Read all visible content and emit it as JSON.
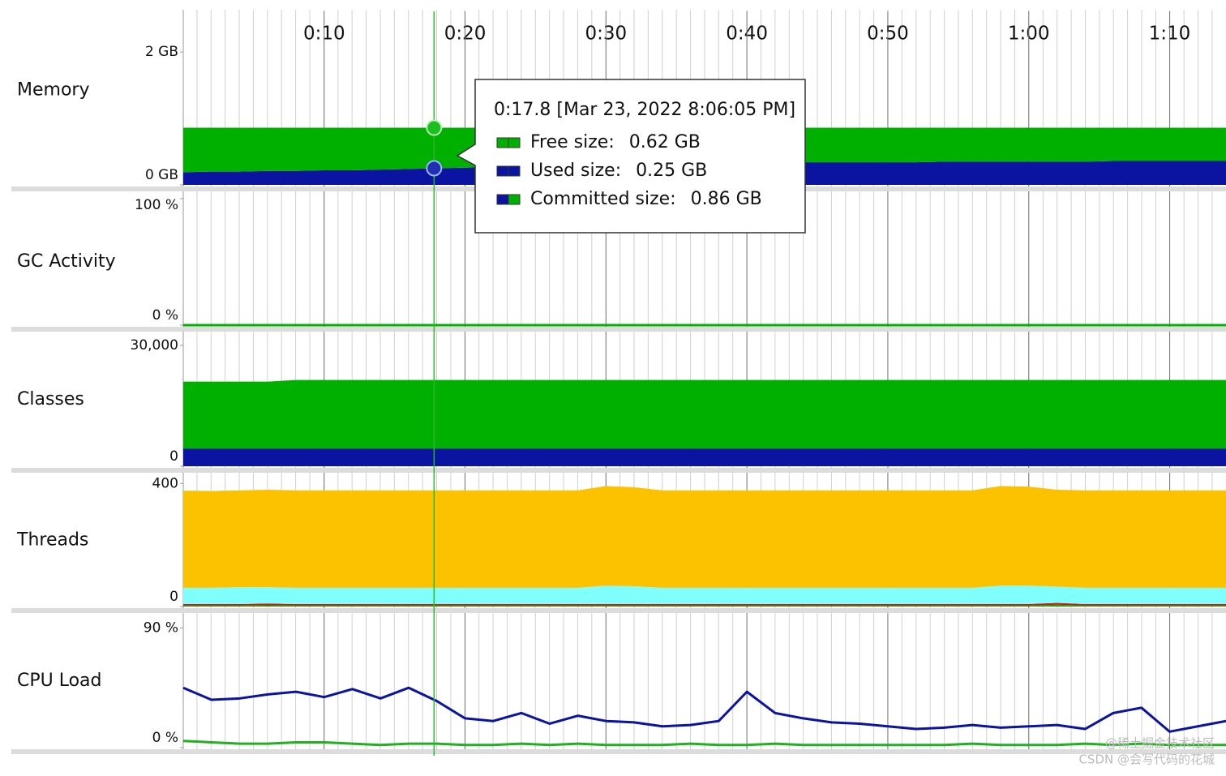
{
  "time_axis": {
    "xlim": [
      0,
      74
    ],
    "xticks": [
      {
        "value": 10,
        "label": "0:10"
      },
      {
        "value": 20,
        "label": "0:20"
      },
      {
        "value": 30,
        "label": "0:30"
      },
      {
        "value": 40,
        "label": "0:40"
      },
      {
        "value": 50,
        "label": "0:50"
      },
      {
        "value": 60,
        "label": "1:00"
      },
      {
        "value": 70,
        "label": "1:10"
      }
    ]
  },
  "t": [
    0,
    2,
    4,
    6,
    8,
    10,
    12,
    14,
    16,
    18,
    20,
    22,
    24,
    26,
    28,
    30,
    32,
    34,
    36,
    38,
    40,
    42,
    44,
    46,
    48,
    50,
    52,
    54,
    56,
    58,
    60,
    62,
    64,
    66,
    68,
    70,
    72,
    74
  ],
  "cursor": 17.8,
  "panels": [
    {
      "label": "Memory",
      "type": "stacked_area",
      "ylim": [
        0,
        2.6
      ],
      "yticks": [
        {
          "value": 0,
          "label": "0 GB"
        },
        {
          "value": 2,
          "label": "2 GB"
        }
      ],
      "series": [
        {
          "color": "#0a14a0",
          "values": [
            0.19,
            0.2,
            0.2,
            0.21,
            0.21,
            0.22,
            0.22,
            0.23,
            0.24,
            0.25,
            0.26,
            0.27,
            0.28,
            0.29,
            0.3,
            0.31,
            0.32,
            0.33,
            0.33,
            0.34,
            0.34,
            0.34,
            0.34,
            0.34,
            0.34,
            0.34,
            0.34,
            0.35,
            0.35,
            0.35,
            0.35,
            0.35,
            0.35,
            0.36,
            0.36,
            0.36,
            0.36,
            0.36
          ]
        },
        {
          "color": "#00b000",
          "values": [
            0.67,
            0.66,
            0.66,
            0.65,
            0.65,
            0.64,
            0.64,
            0.63,
            0.62,
            0.61,
            0.6,
            0.59,
            0.58,
            0.57,
            0.56,
            0.55,
            0.54,
            0.53,
            0.53,
            0.52,
            0.52,
            0.52,
            0.52,
            0.52,
            0.52,
            0.52,
            0.52,
            0.51,
            0.51,
            0.51,
            0.51,
            0.51,
            0.51,
            0.5,
            0.5,
            0.5,
            0.5,
            0.5
          ]
        }
      ]
    },
    {
      "label": "GC Activity",
      "type": "line",
      "ylim": [
        0,
        100
      ],
      "yticks": [
        {
          "value": 0,
          "label": "0 %"
        },
        {
          "value": 100,
          "label": "100 %"
        }
      ],
      "series": [
        {
          "color": "#00b000",
          "values": [
            0,
            0,
            0,
            0,
            0,
            0,
            0,
            0,
            0,
            0,
            0,
            0,
            0,
            0,
            0,
            0,
            0,
            0,
            0,
            0,
            0,
            0,
            0,
            0,
            0,
            0,
            0,
            0,
            0,
            0,
            0,
            0,
            0,
            0,
            0,
            0,
            0,
            0
          ]
        }
      ]
    },
    {
      "label": "Classes",
      "type": "stacked_area",
      "ylim": [
        0,
        33000
      ],
      "yticks": [
        0,
        {
          "value": 30000,
          "label": "30,000"
        }
      ],
      "series": [
        {
          "color": "#0a14a0",
          "values": [
            4400,
            4400,
            4400,
            4400,
            4400,
            4400,
            4400,
            4400,
            4400,
            4400,
            4400,
            4400,
            4400,
            4400,
            4400,
            4400,
            4400,
            4400,
            4400,
            4400,
            4400,
            4400,
            4400,
            4400,
            4400,
            4400,
            4400,
            4400,
            4400,
            4400,
            4400,
            4400,
            4400,
            4400,
            4400,
            4400,
            4400,
            4400
          ]
        },
        {
          "color": "#00b000",
          "values": [
            16600,
            16600,
            16600,
            16600,
            17000,
            17000,
            17000,
            17000,
            17000,
            17000,
            17000,
            17000,
            17000,
            17000,
            17000,
            17000,
            17000,
            17000,
            17000,
            17000,
            17000,
            17000,
            17000,
            17000,
            17000,
            17000,
            17000,
            17000,
            17000,
            17000,
            17000,
            17000,
            17000,
            17000,
            17000,
            17000,
            17000,
            17000
          ]
        }
      ]
    },
    {
      "label": "Threads",
      "type": "stacked_area",
      "ylim": [
        0,
        430
      ],
      "yticks": [
        0,
        400
      ],
      "series": [
        {
          "color": "#00b000",
          "values": [
            3,
            3,
            3,
            4,
            3,
            3,
            3,
            3,
            3,
            3,
            3,
            3,
            3,
            3,
            3,
            3,
            3,
            3,
            3,
            3,
            3,
            3,
            3,
            3,
            3,
            3,
            3,
            3,
            3,
            3,
            3,
            6,
            3,
            3,
            3,
            3,
            3,
            3
          ]
        },
        {
          "color": "#e01010",
          "values": [
            5,
            5,
            5,
            6,
            5,
            5,
            5,
            5,
            5,
            5,
            5,
            5,
            5,
            5,
            5,
            5,
            5,
            5,
            5,
            5,
            5,
            5,
            5,
            5,
            5,
            5,
            5,
            5,
            5,
            5,
            5,
            6,
            5,
            5,
            5,
            5,
            5,
            5
          ]
        },
        {
          "color": "#80ffff",
          "values": [
            53,
            53,
            55,
            53,
            53,
            53,
            53,
            53,
            53,
            53,
            53,
            53,
            53,
            53,
            53,
            60,
            58,
            53,
            53,
            53,
            53,
            53,
            53,
            53,
            53,
            53,
            53,
            53,
            53,
            60,
            60,
            53,
            53,
            53,
            53,
            53,
            53,
            53
          ]
        },
        {
          "color": "#fcc200",
          "values": [
            316,
            315,
            315,
            317,
            317,
            317,
            317,
            317,
            317,
            317,
            317,
            317,
            317,
            317,
            317,
            324,
            322,
            317,
            317,
            317,
            317,
            317,
            317,
            317,
            317,
            317,
            317,
            317,
            317,
            324,
            322,
            315,
            317,
            317,
            317,
            317,
            317,
            317
          ]
        }
      ]
    },
    {
      "label": "CPU Load",
      "type": "line",
      "ylim": [
        0,
        100
      ],
      "yticks": [
        {
          "value": 0,
          "label": "0 %"
        },
        {
          "value": 90,
          "label": "90 %"
        }
      ],
      "series": [
        {
          "color": "#0a14a0",
          "values": [
            45,
            36,
            37,
            40,
            42,
            38,
            44,
            37,
            45,
            35,
            22,
            20,
            26,
            18,
            24,
            20,
            19,
            16,
            17,
            20,
            42,
            26,
            22,
            19,
            18,
            16,
            14,
            15,
            17,
            15,
            16,
            17,
            14,
            26,
            30,
            12,
            16,
            20
          ]
        },
        {
          "color": "#20b020",
          "values": [
            5,
            4,
            3,
            3,
            4,
            4,
            3,
            2,
            3,
            3,
            2,
            2,
            3,
            2,
            3,
            2,
            2,
            2,
            3,
            2,
            2,
            3,
            2,
            2,
            2,
            2,
            2,
            2,
            3,
            2,
            2,
            2,
            3,
            2,
            3,
            2,
            2,
            2
          ]
        }
      ]
    }
  ],
  "tooltip": {
    "title": "0:17.8 [Mar 23, 2022 8:06:05 PM]",
    "items": [
      {
        "label": "Free size:",
        "value": "0.62 GB"
      },
      {
        "label": "Used size:",
        "value": "0.25 GB"
      },
      {
        "label": "Committed size:",
        "value": "0.86 GB"
      }
    ]
  },
  "watermark": [
    "@稀土掘金技术社区",
    "CSDN @会写代码的花城"
  ]
}
